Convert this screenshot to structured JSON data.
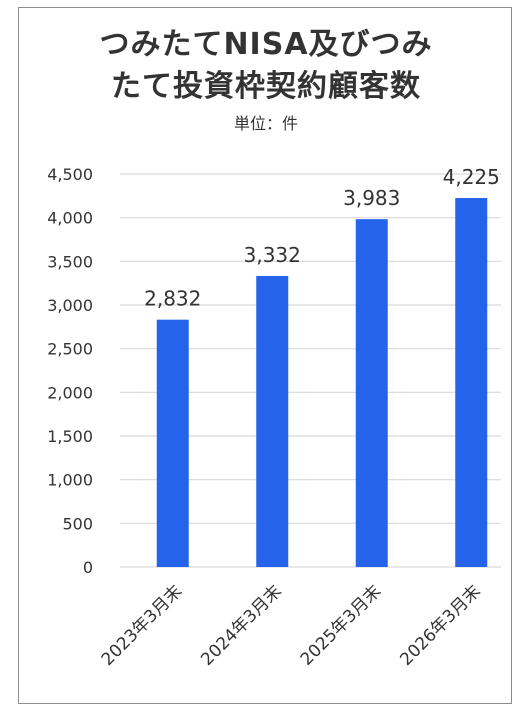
{
  "chart_data": {
    "type": "bar",
    "title": "つみたてNISA及びつみたて投資枠契約顧客数",
    "title_lines": [
      "つみたてNISA及びつみ",
      "たて投資枠契約顧客数"
    ],
    "subtitle": "単位：件",
    "categories": [
      "2023年3月末",
      "2024年3月末",
      "2025年3月末",
      "2026年3月末"
    ],
    "values": [
      2832,
      3332,
      3983,
      4225
    ],
    "data_labels": [
      "2,832",
      "3,332",
      "3,983",
      "4,225"
    ],
    "y_ticks": [
      "0",
      "500",
      "1,000",
      "1,500",
      "2,000",
      "2,500",
      "3,000",
      "3,500",
      "4,000",
      "4,500"
    ],
    "y_tick_values": [
      0,
      500,
      1000,
      1500,
      2000,
      2500,
      3000,
      3500,
      4000,
      4500
    ],
    "ylim": [
      0,
      4500
    ],
    "xlabel": "",
    "ylabel": "",
    "grid": true,
    "legend": "none",
    "colors": {
      "bar": "#2563eb",
      "grid": "#d9d9d9",
      "text": "#333333",
      "border": "#8c8c8c"
    }
  }
}
